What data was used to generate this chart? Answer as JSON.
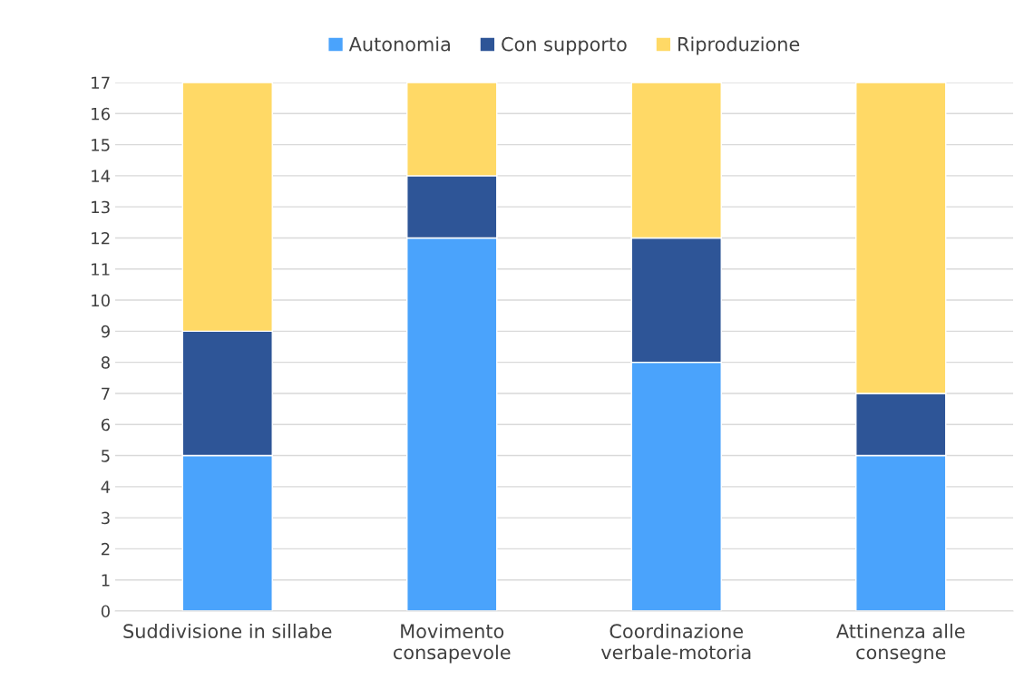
{
  "chart_data": {
    "type": "bar",
    "stacked": true,
    "categories": [
      "Suddivisione in sillabe",
      "Movimento\nconsapevole",
      "Coordinazione\nverbale-motoria",
      "Attinenza alle\nconsegne"
    ],
    "series": [
      {
        "name": "Autonomia",
        "color": "#4aa3fc",
        "values": [
          5,
          12,
          8,
          5
        ]
      },
      {
        "name": "Con supporto",
        "color": "#2e5597",
        "values": [
          4,
          2,
          4,
          2
        ]
      },
      {
        "name": "Riproduzione",
        "color": "#ffd966",
        "values": [
          8,
          3,
          5,
          10
        ]
      }
    ],
    "ylim": [
      0,
      17
    ],
    "yticks": [
      0,
      1,
      2,
      3,
      4,
      5,
      6,
      7,
      8,
      9,
      10,
      11,
      12,
      13,
      14,
      15,
      16,
      17
    ],
    "grid": "y",
    "legend": "top"
  }
}
